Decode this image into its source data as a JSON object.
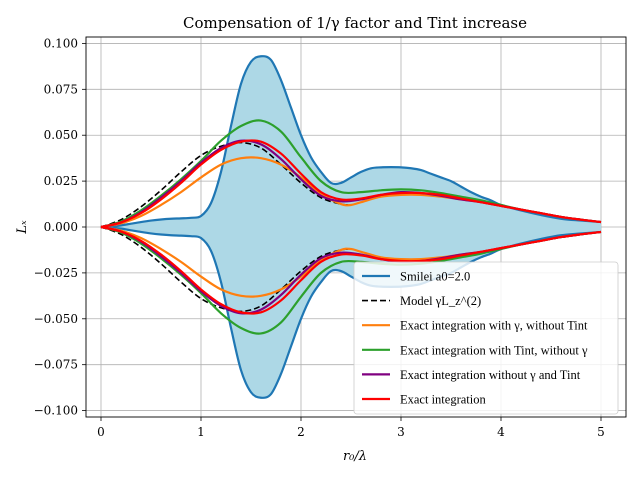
{
  "chart_data": {
    "type": "line",
    "title": "Compensation of 1/γ factor and Tint increase",
    "xlabel": "r₀/λ",
    "ylabel": "Lₓ",
    "xlim": [
      -0.15,
      5.25
    ],
    "ylim": [
      -0.1035,
      0.1035
    ],
    "grid": true,
    "legend_position": "lower-right",
    "x_ticks": [
      0,
      1,
      2,
      3,
      4,
      5
    ],
    "x_tick_labels": [
      "0",
      "1",
      "2",
      "3",
      "4",
      "5"
    ],
    "y_ticks": [
      -0.1,
      -0.075,
      -0.05,
      -0.025,
      0.0,
      0.025,
      0.05,
      0.075,
      0.1
    ],
    "y_tick_labels": [
      "−0.100",
      "−0.075",
      "−0.050",
      "−0.025",
      "0.000",
      "0.025",
      "0.050",
      "0.075",
      "0.100"
    ],
    "fill": {
      "color": "#add8e6",
      "between": "Smilei a0=2.0 upper and lower envelope"
    },
    "series": [
      {
        "name": "Smilei a0=2.0",
        "color": "#1f77b4",
        "dash": "solid",
        "symmetric": true,
        "x": [
          0,
          0.1,
          0.2,
          0.3,
          0.4,
          0.5,
          0.6,
          0.7,
          0.8,
          0.9,
          1.0,
          1.1,
          1.2,
          1.3,
          1.4,
          1.5,
          1.6,
          1.7,
          1.8,
          1.9,
          2.0,
          2.1,
          2.2,
          2.3,
          2.4,
          2.5,
          2.6,
          2.7,
          2.8,
          2.9,
          3.0,
          3.1,
          3.2,
          3.3,
          3.4,
          3.5,
          3.6,
          3.7,
          3.8,
          3.9,
          4.0,
          4.2,
          4.4,
          4.6,
          4.8,
          5.0
        ],
        "y": [
          0.0,
          0.0003,
          0.0009,
          0.0018,
          0.0027,
          0.0035,
          0.0041,
          0.0045,
          0.0047,
          0.005,
          0.006,
          0.013,
          0.03,
          0.055,
          0.078,
          0.09,
          0.093,
          0.091,
          0.08,
          0.065,
          0.05,
          0.038,
          0.03,
          0.024,
          0.024,
          0.027,
          0.03,
          0.032,
          0.0325,
          0.0326,
          0.0325,
          0.032,
          0.031,
          0.029,
          0.027,
          0.025,
          0.022,
          0.019,
          0.0165,
          0.0145,
          0.012,
          0.009,
          0.0065,
          0.0045,
          0.0035,
          0.0027
        ]
      },
      {
        "name": "Model γL_z^(2)",
        "color": "#000000",
        "dash": "dashed",
        "symmetric": true,
        "x": [
          0,
          0.2,
          0.4,
          0.6,
          0.8,
          1.0,
          1.2,
          1.4,
          1.6,
          1.8,
          2.0,
          2.2,
          2.4,
          2.5
        ],
        "y": [
          0.0,
          0.004,
          0.011,
          0.02,
          0.03,
          0.039,
          0.044,
          0.046,
          0.043,
          0.034,
          0.024,
          0.016,
          0.0125,
          0.012
        ]
      },
      {
        "name": "Exact integration with γ, without Tint",
        "color": "#ff7f0e",
        "dash": "solid",
        "symmetric": true,
        "x": [
          0,
          0.2,
          0.4,
          0.6,
          0.8,
          1.0,
          1.2,
          1.4,
          1.6,
          1.8,
          2.0,
          2.2,
          2.4,
          2.5,
          2.6,
          2.8,
          3.0,
          3.2,
          3.4,
          3.6,
          3.8,
          4.0,
          4.2,
          4.4,
          4.6,
          4.8,
          5.0
        ],
        "y": [
          0.0,
          0.002,
          0.006,
          0.012,
          0.019,
          0.027,
          0.034,
          0.0375,
          0.0375,
          0.034,
          0.027,
          0.018,
          0.0125,
          0.012,
          0.0135,
          0.0165,
          0.0175,
          0.0175,
          0.0165,
          0.015,
          0.0135,
          0.0115,
          0.0095,
          0.0075,
          0.0055,
          0.004,
          0.0027
        ]
      },
      {
        "name": "Exact integration with Tint, without γ",
        "color": "#2ca02c",
        "dash": "solid",
        "symmetric": true,
        "x": [
          0,
          0.2,
          0.4,
          0.6,
          0.8,
          1.0,
          1.2,
          1.4,
          1.6,
          1.8,
          2.0,
          2.2,
          2.4,
          2.6,
          2.8,
          3.0,
          3.2,
          3.4,
          3.6,
          3.8,
          4.0,
          4.2,
          4.4,
          4.6,
          4.8,
          5.0
        ],
        "y": [
          0.0,
          0.003,
          0.009,
          0.017,
          0.026,
          0.036,
          0.047,
          0.055,
          0.058,
          0.052,
          0.038,
          0.025,
          0.019,
          0.019,
          0.02,
          0.0205,
          0.02,
          0.0185,
          0.0165,
          0.0145,
          0.012,
          0.0095,
          0.0075,
          0.0055,
          0.004,
          0.0027
        ]
      },
      {
        "name": "Exact integration without γ and Tint",
        "color": "#800080",
        "dash": "solid",
        "symmetric": true,
        "x": [
          0,
          0.2,
          0.4,
          0.6,
          0.8,
          1.0,
          1.2,
          1.4,
          1.6,
          1.8,
          2.0,
          2.2,
          2.4,
          2.6,
          2.8,
          3.0,
          3.2,
          3.4,
          3.6,
          3.8,
          4.0,
          4.2,
          4.4,
          4.6,
          4.8,
          5.0
        ],
        "y": [
          0.0,
          0.0025,
          0.008,
          0.016,
          0.025,
          0.035,
          0.043,
          0.047,
          0.045,
          0.037,
          0.026,
          0.017,
          0.014,
          0.015,
          0.0175,
          0.019,
          0.0185,
          0.017,
          0.015,
          0.0135,
          0.0115,
          0.0095,
          0.0075,
          0.0055,
          0.004,
          0.0027
        ]
      },
      {
        "name": "Exact integration",
        "color": "#ff0000",
        "dash": "solid",
        "symmetric": true,
        "x": [
          0,
          0.2,
          0.4,
          0.6,
          0.8,
          1.0,
          1.2,
          1.4,
          1.6,
          1.8,
          2.0,
          2.2,
          2.4,
          2.6,
          2.8,
          3.0,
          3.2,
          3.4,
          3.6,
          3.8,
          4.0,
          4.2,
          4.4,
          4.6,
          4.8,
          5.0
        ],
        "y": [
          0.0,
          0.0025,
          0.0075,
          0.015,
          0.024,
          0.034,
          0.042,
          0.0465,
          0.0465,
          0.04,
          0.029,
          0.019,
          0.015,
          0.0155,
          0.0175,
          0.0185,
          0.0185,
          0.0175,
          0.0155,
          0.0135,
          0.0115,
          0.0095,
          0.0075,
          0.0055,
          0.004,
          0.0027
        ]
      }
    ]
  }
}
